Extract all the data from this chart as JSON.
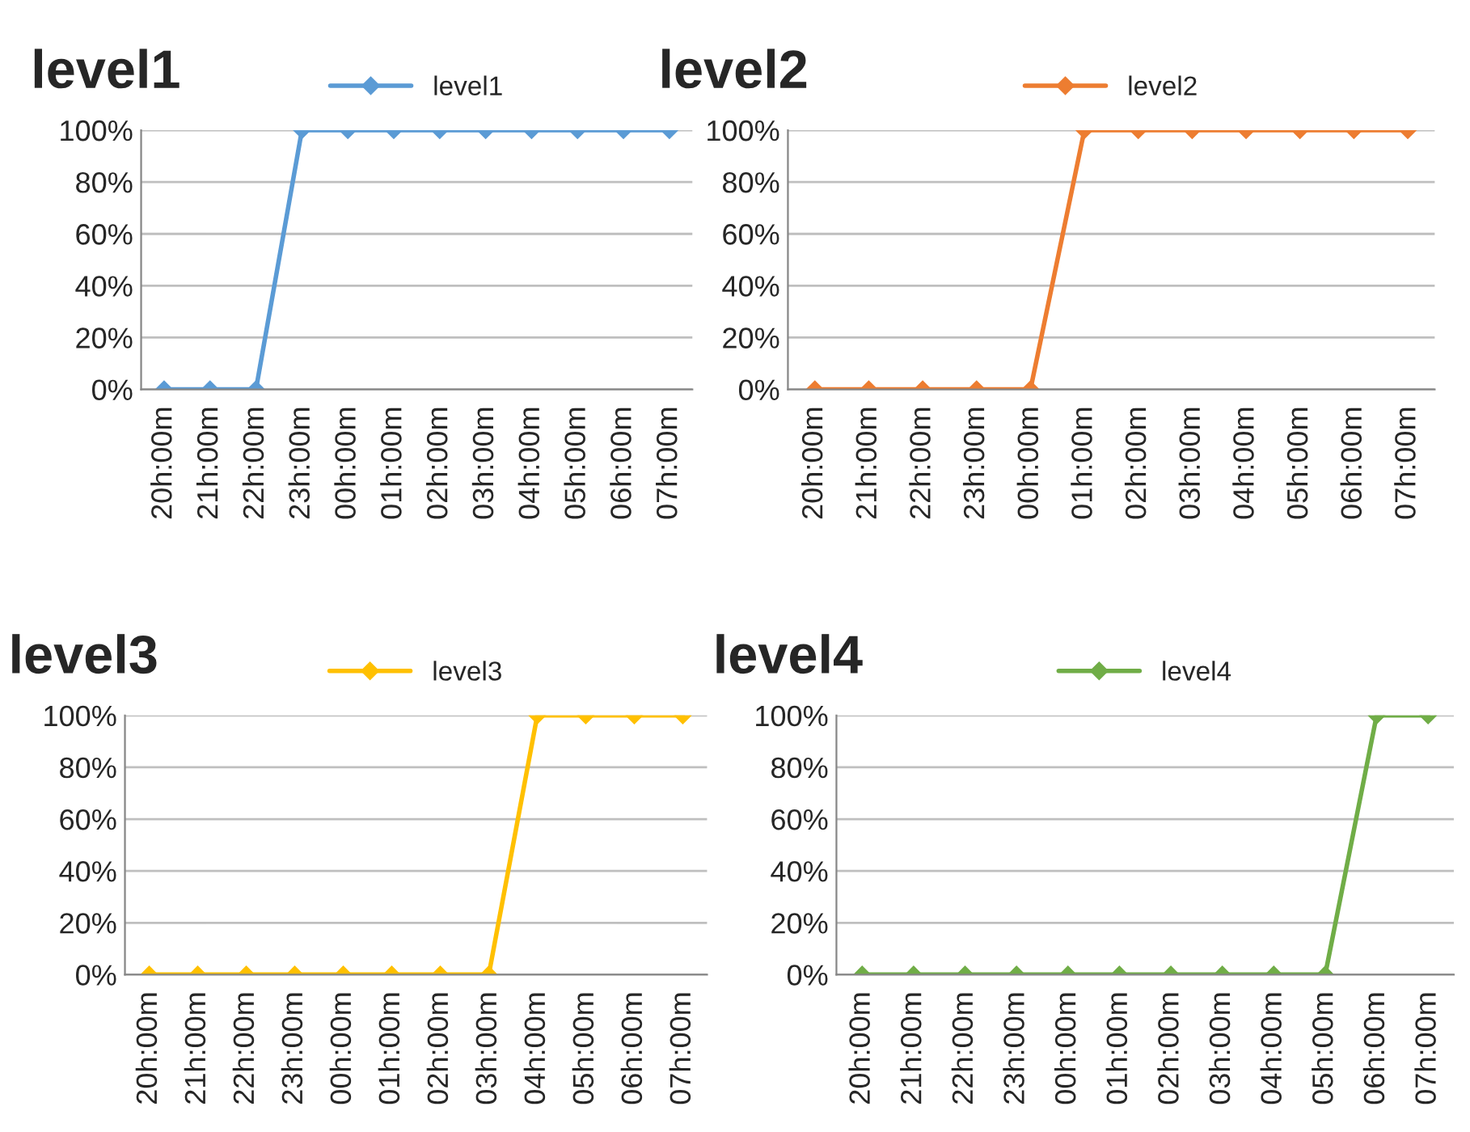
{
  "chart_data": [
    {
      "type": "line",
      "title": "level1",
      "categories": [
        "20h:00m",
        "21h:00m",
        "22h:00m",
        "23h:00m",
        "00h:00m",
        "01h:00m",
        "02h:00m",
        "03h:00m",
        "04h:00m",
        "05h:00m",
        "06h:00m",
        "07h:00m"
      ],
      "series": [
        {
          "name": "level1",
          "color": "#5b9bd5",
          "values": [
            0,
            0,
            0,
            100,
            100,
            100,
            100,
            100,
            100,
            100,
            100,
            100
          ]
        }
      ],
      "ylim": [
        0,
        100
      ],
      "yticks": [
        {
          "value": 0,
          "label": "0%"
        },
        {
          "value": 20,
          "label": "20%"
        },
        {
          "value": 40,
          "label": "40%"
        },
        {
          "value": 60,
          "label": "60%"
        },
        {
          "value": 80,
          "label": "80%"
        },
        {
          "value": 100,
          "label": "100%"
        }
      ],
      "grid": "y",
      "legend": "top",
      "marker": "diamond",
      "line_style": "solid"
    },
    {
      "type": "line",
      "title": "level2",
      "categories": [
        "20h:00m",
        "21h:00m",
        "22h:00m",
        "23h:00m",
        "00h:00m",
        "01h:00m",
        "02h:00m",
        "03h:00m",
        "04h:00m",
        "05h:00m",
        "06h:00m",
        "07h:00m"
      ],
      "series": [
        {
          "name": "level2",
          "color": "#ed7d31",
          "values": [
            0,
            0,
            0,
            0,
            0,
            100,
            100,
            100,
            100,
            100,
            100,
            100
          ]
        }
      ],
      "ylim": [
        0,
        100
      ],
      "yticks": [
        {
          "value": 0,
          "label": "0%"
        },
        {
          "value": 20,
          "label": "20%"
        },
        {
          "value": 40,
          "label": "40%"
        },
        {
          "value": 60,
          "label": "60%"
        },
        {
          "value": 80,
          "label": "80%"
        },
        {
          "value": 100,
          "label": "100%"
        }
      ],
      "grid": "y",
      "legend": "top",
      "marker": "diamond",
      "line_style": "solid"
    },
    {
      "type": "line",
      "title": "level3",
      "categories": [
        "20h:00m",
        "21h:00m",
        "22h:00m",
        "23h:00m",
        "00h:00m",
        "01h:00m",
        "02h:00m",
        "03h:00m",
        "04h:00m",
        "05h:00m",
        "06h:00m",
        "07h:00m"
      ],
      "series": [
        {
          "name": "level3",
          "color": "#ffc000",
          "values": [
            0,
            0,
            0,
            0,
            0,
            0,
            0,
            0,
            100,
            100,
            100,
            100
          ]
        }
      ],
      "ylim": [
        0,
        100
      ],
      "yticks": [
        {
          "value": 0,
          "label": "0%"
        },
        {
          "value": 20,
          "label": "20%"
        },
        {
          "value": 40,
          "label": "40%"
        },
        {
          "value": 60,
          "label": "60%"
        },
        {
          "value": 80,
          "label": "80%"
        },
        {
          "value": 100,
          "label": "100%"
        }
      ],
      "grid": "y",
      "legend": "top",
      "marker": "diamond",
      "line_style": "solid"
    },
    {
      "type": "line",
      "title": "level4",
      "categories": [
        "20h:00m",
        "21h:00m",
        "22h:00m",
        "23h:00m",
        "00h:00m",
        "01h:00m",
        "02h:00m",
        "03h:00m",
        "04h:00m",
        "05h:00m",
        "06h:00m",
        "07h:00m"
      ],
      "series": [
        {
          "name": "level4",
          "color": "#70ad47",
          "values": [
            0,
            0,
            0,
            0,
            0,
            0,
            0,
            0,
            0,
            0,
            100,
            100
          ]
        }
      ],
      "ylim": [
        0,
        100
      ],
      "yticks": [
        {
          "value": 0,
          "label": "0%"
        },
        {
          "value": 20,
          "label": "20%"
        },
        {
          "value": 40,
          "label": "40%"
        },
        {
          "value": 60,
          "label": "60%"
        },
        {
          "value": 80,
          "label": "80%"
        },
        {
          "value": 100,
          "label": "100%"
        }
      ],
      "grid": "y",
      "legend": "top",
      "marker": "diamond",
      "line_style": "solid"
    }
  ]
}
